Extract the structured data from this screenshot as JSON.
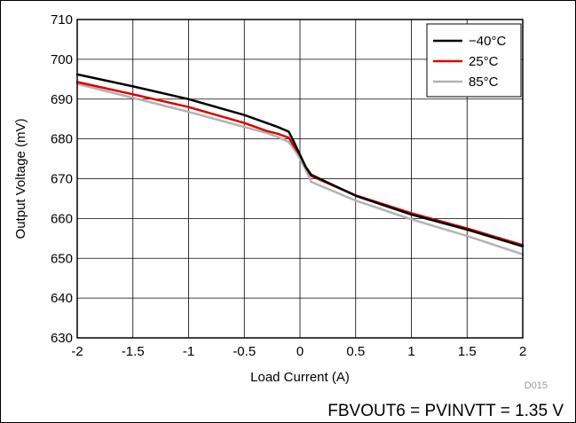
{
  "chart_data": {
    "type": "line",
    "title": "",
    "xlabel": "Load Current (A)",
    "ylabel": "Output Voltage (mV)",
    "xlim": [
      -2,
      2
    ],
    "ylim": [
      630,
      710
    ],
    "x_ticks": [
      "-2",
      "-1.5",
      "-1",
      "-0.5",
      "0",
      "0.5",
      "1",
      "1.5",
      "2"
    ],
    "y_ticks": [
      "630",
      "640",
      "650",
      "660",
      "670",
      "680",
      "690",
      "700",
      "710"
    ],
    "grid": true,
    "legend_position": "top-right",
    "series": [
      {
        "name": "−40°C",
        "color": "#000000",
        "x": [
          -2,
          -1.5,
          -1,
          -0.5,
          -0.3,
          -0.2,
          -0.1,
          -0.05,
          0,
          0.05,
          0.1,
          0.5,
          1,
          1.5,
          2
        ],
        "y": [
          696.2,
          693.2,
          690,
          686,
          684,
          683,
          681.8,
          679,
          676,
          673,
          671,
          665.7,
          661,
          657.2,
          653
        ]
      },
      {
        "name": "25°C",
        "color": "#dd0000",
        "x": [
          -2,
          -1.5,
          -1,
          -0.5,
          -0.3,
          -0.2,
          -0.1,
          -0.05,
          0,
          0.05,
          0.1,
          0.5,
          1,
          1.5,
          2
        ],
        "y": [
          694.3,
          691.2,
          688,
          684,
          682,
          681.3,
          680.3,
          678,
          676,
          673,
          670.7,
          665.8,
          661.3,
          657.5,
          653.3
        ]
      },
      {
        "name": "85°C",
        "color": "#b3b3b3",
        "x": [
          -2,
          -1.5,
          -1,
          -0.5,
          -0.3,
          -0.2,
          -0.1,
          -0.05,
          0,
          0.05,
          0.1,
          0.5,
          1,
          1.5,
          2
        ],
        "y": [
          693.8,
          690.3,
          686.8,
          683,
          681.5,
          680.5,
          679.2,
          677.3,
          675,
          672.3,
          669.2,
          664.5,
          659.8,
          655.6,
          651
        ]
      }
    ]
  },
  "doc_id": "D015",
  "caption": "FBVOUT6 = PVINVTT = 1.35 V"
}
